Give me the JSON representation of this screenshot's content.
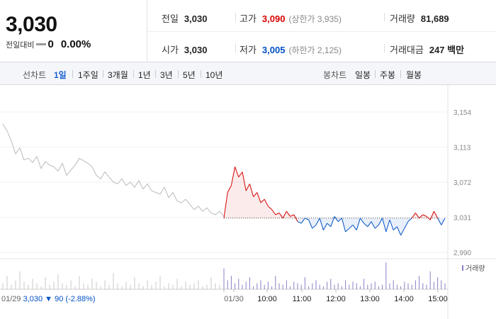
{
  "summary": {
    "price": "3,030",
    "change_label": "전일대비",
    "change_value": "0",
    "change_percent": "0.00%",
    "prev_close": {
      "label": "전일",
      "value": "3,030"
    },
    "high": {
      "label": "고가",
      "value": "3,090",
      "sub": "(상한가 3,935)"
    },
    "volume": {
      "label": "거래량",
      "value": "81,689"
    },
    "open": {
      "label": "시가",
      "value": "3,030"
    },
    "low": {
      "label": "저가",
      "value": "3,005",
      "sub": "(하한가 2,125)"
    },
    "amount": {
      "label": "거래대금",
      "value": "247 백만"
    }
  },
  "line_tabs": {
    "label": "선차트",
    "items": [
      "1일",
      "1주일",
      "3개월",
      "1년",
      "3년",
      "5년",
      "10년"
    ],
    "active": "1일"
  },
  "candle_tabs": {
    "label": "봉차트",
    "items": [
      "일봉",
      "주봉",
      "월봉"
    ]
  },
  "colors": {
    "up": "#d60000",
    "down": "#0051c7",
    "prev": "#bbbbbb"
  },
  "chart_data": {
    "type": "line",
    "title": "",
    "y_ticks": [
      "3,154",
      "3,113",
      "3,072",
      "3,031",
      "2,990"
    ],
    "ylim": [
      2990,
      3154
    ],
    "base_price": 3030,
    "x_tick_labels": [
      "01/30",
      "10:00",
      "11:00",
      "12:00",
      "13:00",
      "14:00",
      "15:00"
    ],
    "volume_legend": "거래량",
    "prev_day_label": {
      "date": "01/29",
      "price": "3,030",
      "change": "▼ 90",
      "pct": "(-2.88%)"
    },
    "prev_day_series": [
      3140,
      3132,
      3120,
      3105,
      3112,
      3098,
      3100,
      3095,
      3102,
      3088,
      3096,
      3092,
      3090,
      3085,
      3094,
      3080,
      3086,
      3092,
      3100,
      3097,
      3094,
      3090,
      3080,
      3076,
      3084,
      3078,
      3072,
      3070,
      3076,
      3068,
      3072,
      3066,
      3074,
      3064,
      3070,
      3062,
      3060,
      3058,
      3066,
      3054,
      3060,
      3050,
      3048,
      3052,
      3046,
      3040,
      3044,
      3038,
      3042,
      3036,
      3034,
      3038,
      3032
    ],
    "today_series": [
      3030,
      3060,
      3068,
      3090,
      3078,
      3084,
      3062,
      3070,
      3055,
      3060,
      3048,
      3052,
      3044,
      3040,
      3034,
      3036,
      3030,
      3038,
      3032,
      3034,
      3026,
      3024,
      3030,
      3028,
      3018,
      3022,
      3030,
      3016,
      3024,
      3020,
      3032,
      3026,
      3030,
      3014,
      3018,
      3022,
      3016,
      3030,
      3024,
      3020,
      3026,
      3018,
      3022,
      3030,
      3014,
      3028,
      3016,
      3020,
      3010,
      3018,
      3026,
      3030,
      3036,
      3030,
      3034,
      3032,
      3028,
      3038,
      3030,
      3022,
      3030
    ],
    "prev_day_volume": [
      4,
      9,
      3,
      6,
      12,
      5,
      3,
      7,
      4,
      2,
      8,
      3,
      5,
      10,
      4,
      3,
      6,
      2,
      9,
      4,
      3,
      7,
      5,
      2,
      6,
      3,
      11,
      4,
      2,
      5,
      3,
      8,
      4,
      2,
      6,
      3,
      5,
      9,
      2,
      4,
      3,
      7,
      2,
      5,
      3,
      4,
      6,
      2,
      3,
      8,
      4,
      3,
      5
    ],
    "today_volume": [
      14,
      6,
      9,
      4,
      7,
      3,
      5,
      8,
      2,
      4,
      6,
      3,
      5,
      2,
      9,
      4,
      3,
      6,
      2,
      5,
      4,
      3,
      8,
      2,
      4,
      6,
      3,
      2,
      5,
      7,
      3,
      4,
      2,
      6,
      3,
      5,
      4,
      2,
      7,
      3,
      4,
      5,
      2,
      3,
      18,
      4,
      6,
      3,
      2,
      5,
      4,
      3,
      6,
      9,
      4,
      3,
      12,
      5,
      8,
      6,
      4
    ]
  }
}
